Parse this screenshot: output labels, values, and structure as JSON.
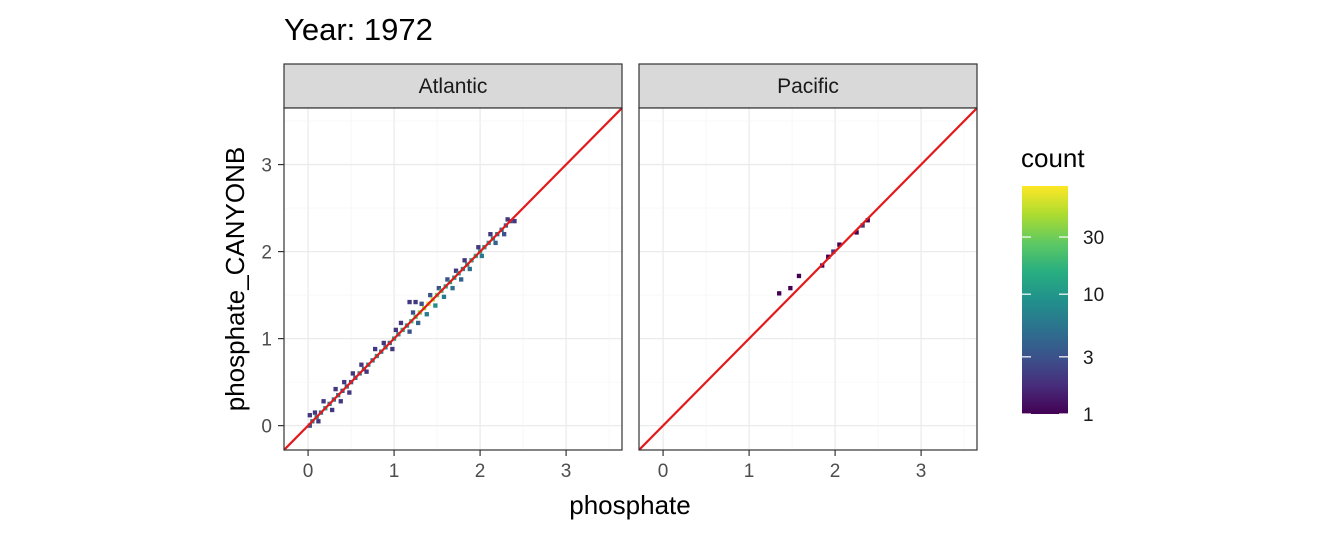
{
  "chart_data": {
    "type": "heatmap",
    "title": "Year: 1972",
    "xlabel": "phosphate",
    "ylabel": "phosphate_CANYONB",
    "xlim": [
      -0.28,
      3.65
    ],
    "ylim": [
      -0.28,
      3.65
    ],
    "x_ticks": [
      "0",
      "1",
      "2",
      "3"
    ],
    "y_ticks": [
      "0",
      "1",
      "2",
      "3"
    ],
    "grid": true,
    "reference_line": {
      "slope": 1,
      "intercept": 0,
      "color": "#e31a1c"
    },
    "bin_width": 0.05,
    "legend": {
      "title": "count",
      "position": "right",
      "scale": "log",
      "range": [
        1,
        80
      ],
      "breaks": [
        "1",
        "3",
        "10",
        "30"
      ],
      "colormap": "viridis"
    },
    "panels": [
      {
        "name": "Atlantic",
        "bins": [
          [
            0.02,
            0.0,
            3
          ],
          [
            0.02,
            0.12,
            2
          ],
          [
            0.05,
            0.05,
            6
          ],
          [
            0.1,
            0.1,
            8
          ],
          [
            0.08,
            0.15,
            2
          ],
          [
            0.15,
            0.15,
            5
          ],
          [
            0.12,
            0.05,
            2
          ],
          [
            0.2,
            0.2,
            12
          ],
          [
            0.18,
            0.28,
            2
          ],
          [
            0.25,
            0.25,
            6
          ],
          [
            0.28,
            0.18,
            2
          ],
          [
            0.3,
            0.3,
            5
          ],
          [
            0.35,
            0.35,
            7
          ],
          [
            0.32,
            0.42,
            2
          ],
          [
            0.4,
            0.4,
            4
          ],
          [
            0.38,
            0.28,
            2
          ],
          [
            0.45,
            0.45,
            5
          ],
          [
            0.42,
            0.5,
            2
          ],
          [
            0.5,
            0.5,
            3
          ],
          [
            0.48,
            0.38,
            2
          ],
          [
            0.55,
            0.55,
            4
          ],
          [
            0.52,
            0.6,
            2
          ],
          [
            0.6,
            0.6,
            6
          ],
          [
            0.65,
            0.65,
            5
          ],
          [
            0.62,
            0.7,
            2
          ],
          [
            0.7,
            0.7,
            8
          ],
          [
            0.68,
            0.62,
            2
          ],
          [
            0.75,
            0.75,
            5
          ],
          [
            0.8,
            0.8,
            10
          ],
          [
            0.78,
            0.88,
            2
          ],
          [
            0.85,
            0.85,
            6
          ],
          [
            0.9,
            0.9,
            7
          ],
          [
            0.88,
            0.95,
            2
          ],
          [
            0.95,
            0.95,
            5
          ],
          [
            0.98,
            0.88,
            2
          ],
          [
            1.0,
            1.0,
            12
          ],
          [
            1.02,
            1.1,
            2
          ],
          [
            1.05,
            1.05,
            8
          ],
          [
            1.1,
            1.1,
            15
          ],
          [
            1.08,
            1.18,
            2
          ],
          [
            1.15,
            1.15,
            10
          ],
          [
            1.18,
            1.08,
            3
          ],
          [
            1.2,
            1.2,
            20
          ],
          [
            1.22,
            1.3,
            3
          ],
          [
            1.18,
            1.42,
            2
          ],
          [
            1.25,
            1.25,
            25
          ],
          [
            1.28,
            1.18,
            4
          ],
          [
            1.3,
            1.3,
            35
          ],
          [
            1.32,
            1.4,
            3
          ],
          [
            1.25,
            1.42,
            2
          ],
          [
            1.35,
            1.35,
            45
          ],
          [
            1.38,
            1.28,
            6
          ],
          [
            1.4,
            1.4,
            60
          ],
          [
            1.42,
            1.5,
            3
          ],
          [
            1.45,
            1.45,
            50
          ],
          [
            1.48,
            1.38,
            8
          ],
          [
            1.5,
            1.5,
            30
          ],
          [
            1.52,
            1.58,
            3
          ],
          [
            1.55,
            1.55,
            20
          ],
          [
            1.58,
            1.48,
            6
          ],
          [
            1.6,
            1.6,
            15
          ],
          [
            1.62,
            1.68,
            3
          ],
          [
            1.65,
            1.65,
            12
          ],
          [
            1.68,
            1.58,
            5
          ],
          [
            1.7,
            1.7,
            10
          ],
          [
            1.72,
            1.78,
            2
          ],
          [
            1.75,
            1.75,
            9
          ],
          [
            1.78,
            1.68,
            4
          ],
          [
            1.8,
            1.8,
            8
          ],
          [
            1.85,
            1.85,
            10
          ],
          [
            1.82,
            1.9,
            2
          ],
          [
            1.9,
            1.9,
            12
          ],
          [
            1.88,
            1.8,
            5
          ],
          [
            1.95,
            1.95,
            15
          ],
          [
            2.0,
            2.0,
            14
          ],
          [
            1.98,
            2.05,
            2
          ],
          [
            2.05,
            2.05,
            12
          ],
          [
            2.02,
            1.95,
            6
          ],
          [
            2.1,
            2.1,
            10
          ],
          [
            2.15,
            2.15,
            8
          ],
          [
            2.12,
            2.2,
            2
          ],
          [
            2.2,
            2.2,
            6
          ],
          [
            2.18,
            2.1,
            4
          ],
          [
            2.25,
            2.25,
            5
          ],
          [
            2.3,
            2.3,
            4
          ],
          [
            2.28,
            2.2,
            3
          ],
          [
            2.35,
            2.35,
            3
          ],
          [
            2.4,
            2.35,
            2
          ],
          [
            2.32,
            2.37,
            2
          ]
        ]
      },
      {
        "name": "Pacific",
        "bins": [
          [
            1.35,
            1.52,
            1
          ],
          [
            1.48,
            1.58,
            1
          ],
          [
            1.58,
            1.72,
            1
          ],
          [
            1.85,
            1.84,
            1
          ],
          [
            1.92,
            1.94,
            1
          ],
          [
            1.98,
            2.0,
            2
          ],
          [
            2.05,
            2.08,
            1
          ],
          [
            2.25,
            2.22,
            1
          ],
          [
            2.32,
            2.3,
            2
          ],
          [
            2.38,
            2.36,
            1
          ]
        ]
      }
    ]
  }
}
